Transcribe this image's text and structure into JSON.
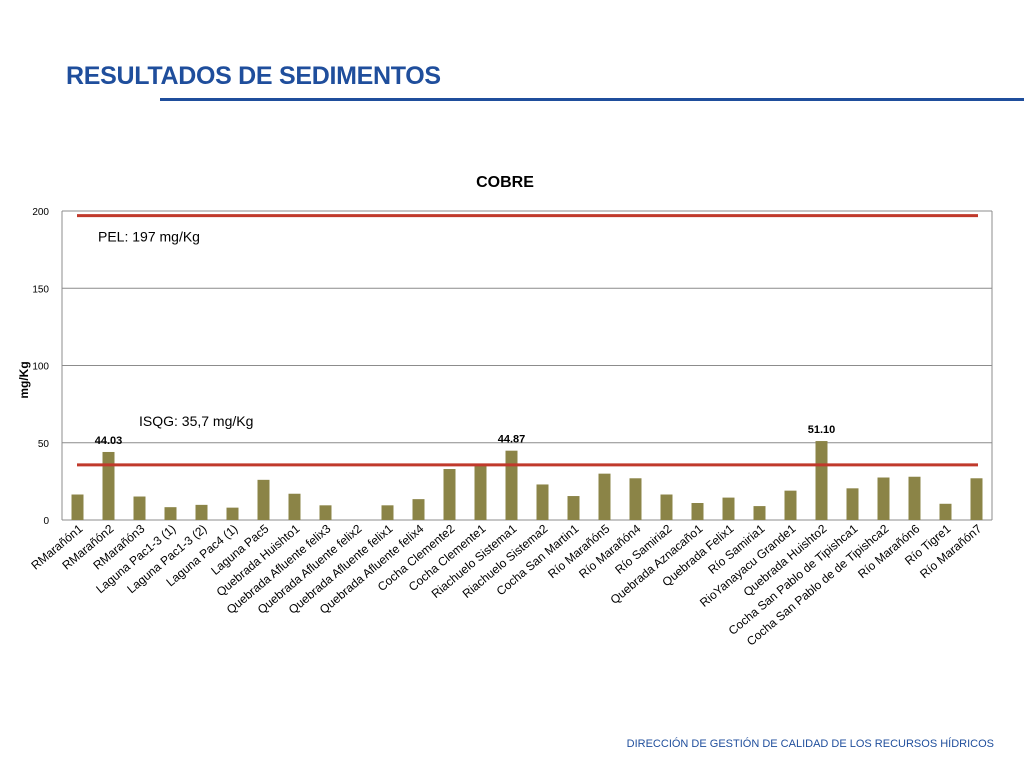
{
  "slide": {
    "title": "RESULTADOS DE SEDIMENTOS",
    "footer": "DIRECCIÓN DE GESTIÓN DE CALIDAD DE LOS RECURSOS HÍDRICOS",
    "accent_color": "#1f4e9c"
  },
  "chart_data": {
    "type": "bar",
    "title": "COBRE",
    "xlabel": "",
    "ylabel": "mg/Kg",
    "ylim": [
      0,
      200
    ],
    "yticks": [
      0,
      50,
      100,
      150,
      200
    ],
    "grid": true,
    "bar_color": "#8b8447",
    "categories": [
      "RMarañón1",
      "RMarañón2",
      "RMarañón3",
      "Laguna Pac1-3 (1)",
      "Laguna Pac1-3 (2)",
      "Laguna Pac4 (1)",
      "Laguna Pac5",
      "Quebrada Huishto1",
      "Quebrada Afluente felix3",
      "Quebrada Afluente felix2",
      "Quebrada Afluente felix1",
      "Quebrada Afluente felix4",
      "Cocha Clemente2",
      "Cocha Clemente1",
      "Riachuelo Sistema1",
      "Riachuelo Sistema2",
      "Cocha San Martin1",
      "Río Marañón5",
      "Río Marañón4",
      "Río Samiria2",
      "Quebrada Aznacaño1",
      "Quebrada Felix1",
      "Río Samiria1",
      "RioYanayacu Grande1",
      "Quebrada Huishto2",
      "Cocha San Pablo de Tipishca1",
      "Cocha San Pablo de de Tipishca2",
      "Río Marañón6",
      "Río Tigre1",
      "Río Marañón7"
    ],
    "values": [
      16.5,
      44.03,
      15.2,
      8.3,
      9.8,
      8.0,
      26.0,
      17.0,
      9.5,
      0,
      9.5,
      13.5,
      33.0,
      36.0,
      44.87,
      23.0,
      15.5,
      30.0,
      27.0,
      16.5,
      11.0,
      14.5,
      9.0,
      19.0,
      51.1,
      20.5,
      27.5,
      28.0,
      10.5,
      27.0
    ],
    "data_labels": [
      {
        "index": 1,
        "text": "44.03"
      },
      {
        "index": 14,
        "text": "44.87"
      },
      {
        "index": 24,
        "text": "51.10"
      }
    ],
    "reference_lines": [
      {
        "value": 197,
        "label": "PEL: 197 mg/Kg",
        "color": "#c0392b"
      },
      {
        "value": 35.7,
        "label": "ISQG: 35,7 mg/Kg",
        "color": "#c0392b"
      }
    ]
  }
}
